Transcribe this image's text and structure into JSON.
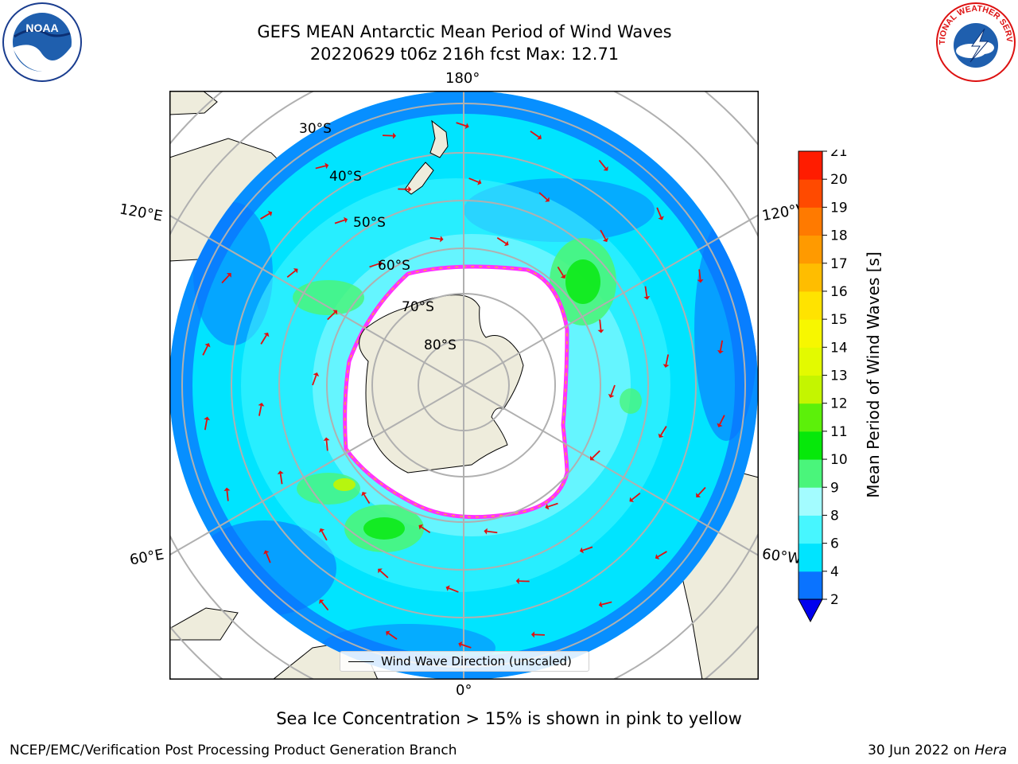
{
  "title": {
    "line1": "GEFS MEAN Antarctic Mean Period of Wind Waves",
    "line2": "20220629 t06z 216h fcst   Max: 12.71"
  },
  "map": {
    "longitude_labels": {
      "top": "180°",
      "left": "120°E",
      "right": "120°W",
      "bottom": "0°",
      "lower_left": "60°E",
      "lower_right": "60°W"
    },
    "latitude_labels": [
      "30°S",
      "40°S",
      "50°S",
      "60°S",
      "70°S",
      "80°S"
    ],
    "legend": "Wind Wave Direction (unscaled)",
    "arrow_color": "#e01010",
    "land_color": "#eeecdc",
    "sea_ice_edge_colors": [
      "#ff33ff",
      "#ffaa33",
      "#ffff44"
    ]
  },
  "colorbar": {
    "label": "Mean Period of Wind Waves [s]",
    "ticks": [
      2,
      4,
      6,
      8,
      9,
      10,
      11,
      12,
      13,
      14,
      15,
      16,
      17,
      18,
      19,
      20,
      21
    ],
    "colors": [
      "#0a73ff",
      "#00e4ff",
      "#47f6ff",
      "#a3fcff",
      "#4af57b",
      "#06e80a",
      "#5cf00a",
      "#c4f500",
      "#e3fa00",
      "#f7f700",
      "#ffe300",
      "#ffbd00",
      "#ff9a00",
      "#ff7a00",
      "#ff4a00",
      "#ff1c00"
    ],
    "under_color": "#0000ee"
  },
  "subtitle": "Sea Ice Concentration > 15% is shown in pink to yellow",
  "footer": {
    "left": "NCEP/EMC/Verification Post Processing Product Generation Branch",
    "date": "30 Jun 2022 on ",
    "host": "Hera"
  },
  "logos": {
    "left": "NOAA",
    "right": "NATIONAL WEATHER SERVICE"
  }
}
